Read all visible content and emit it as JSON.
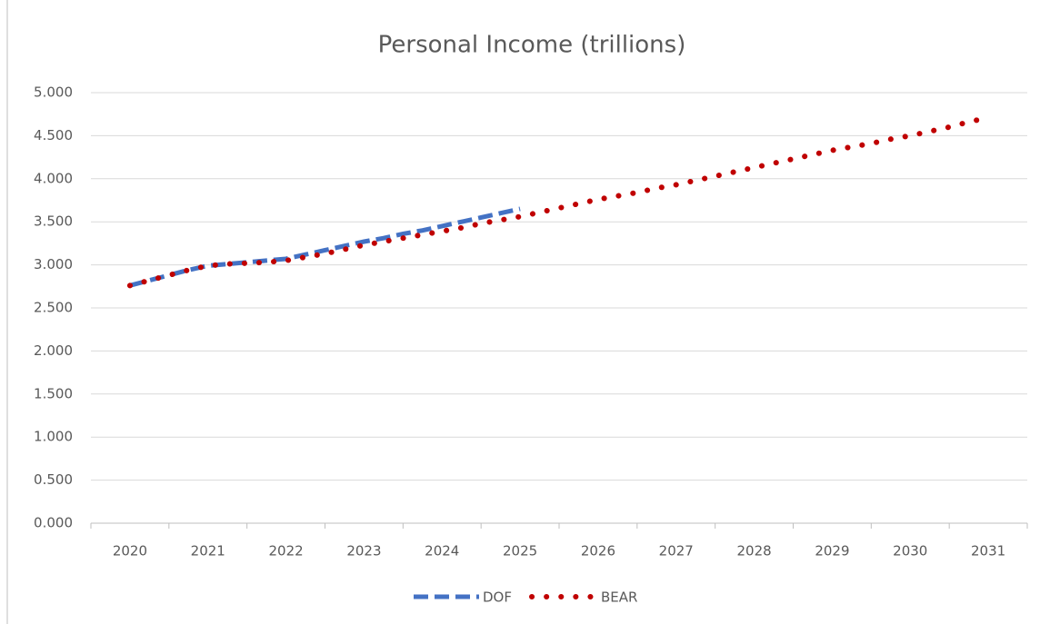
{
  "chart_data": {
    "type": "line",
    "title": "Personal Income (trillions)",
    "categories": [
      "2020",
      null,
      null,
      null,
      "2021",
      null,
      null,
      null,
      "2022",
      null,
      null,
      null,
      "2023",
      null,
      null,
      null,
      "2024",
      null,
      null,
      null,
      "2025",
      null,
      null,
      null,
      "2026",
      null,
      null,
      null,
      "2027",
      null,
      null,
      null,
      "2028",
      null,
      null,
      null,
      "2029",
      null,
      null,
      null,
      "2030",
      null,
      null,
      null,
      "2031"
    ],
    "series": [
      {
        "name": "DOF",
        "color": "#4472c4",
        "style": "dashed",
        "values": [
          2.76,
          2.82,
          2.88,
          2.94,
          2.99,
          3.01,
          3.03,
          3.05,
          3.07,
          3.12,
          3.17,
          3.22,
          3.27,
          3.31,
          3.36,
          3.4,
          3.45,
          3.5,
          3.55,
          3.6,
          3.65,
          null,
          null,
          null,
          null,
          null,
          null,
          null,
          null,
          null,
          null,
          null,
          null,
          null,
          null,
          null,
          null,
          null,
          null,
          null,
          null,
          null,
          null,
          null,
          null
        ]
      },
      {
        "name": "BEAR",
        "color": "#c00000",
        "style": "dotted",
        "values": [
          2.76,
          2.82,
          2.88,
          2.94,
          2.99,
          3.01,
          3.02,
          3.03,
          3.05,
          3.09,
          3.13,
          3.18,
          3.23,
          3.27,
          3.31,
          3.35,
          3.39,
          3.43,
          3.48,
          3.52,
          3.56,
          3.61,
          3.66,
          3.71,
          3.76,
          3.8,
          3.84,
          3.89,
          3.93,
          3.98,
          4.03,
          4.08,
          4.13,
          4.18,
          4.23,
          4.28,
          4.33,
          4.37,
          4.41,
          4.46,
          4.5,
          4.55,
          4.6,
          4.66,
          4.71
        ]
      }
    ],
    "ylim": [
      0,
      5
    ],
    "yticks": [
      {
        "value": 0,
        "label": "0.000"
      },
      {
        "value": 0.5,
        "label": "0.500"
      },
      {
        "value": 1,
        "label": "1.000"
      },
      {
        "value": 1.5,
        "label": "1.500"
      },
      {
        "value": 2,
        "label": "2.000"
      },
      {
        "value": 2.5,
        "label": "2.500"
      },
      {
        "value": 3,
        "label": "3.000"
      },
      {
        "value": 3.5,
        "label": "3.500"
      },
      {
        "value": 4,
        "label": "4.000"
      },
      {
        "value": 4.5,
        "label": "4.500"
      },
      {
        "value": 5,
        "label": "5.000"
      }
    ],
    "grid": true,
    "legend": "bottom"
  }
}
